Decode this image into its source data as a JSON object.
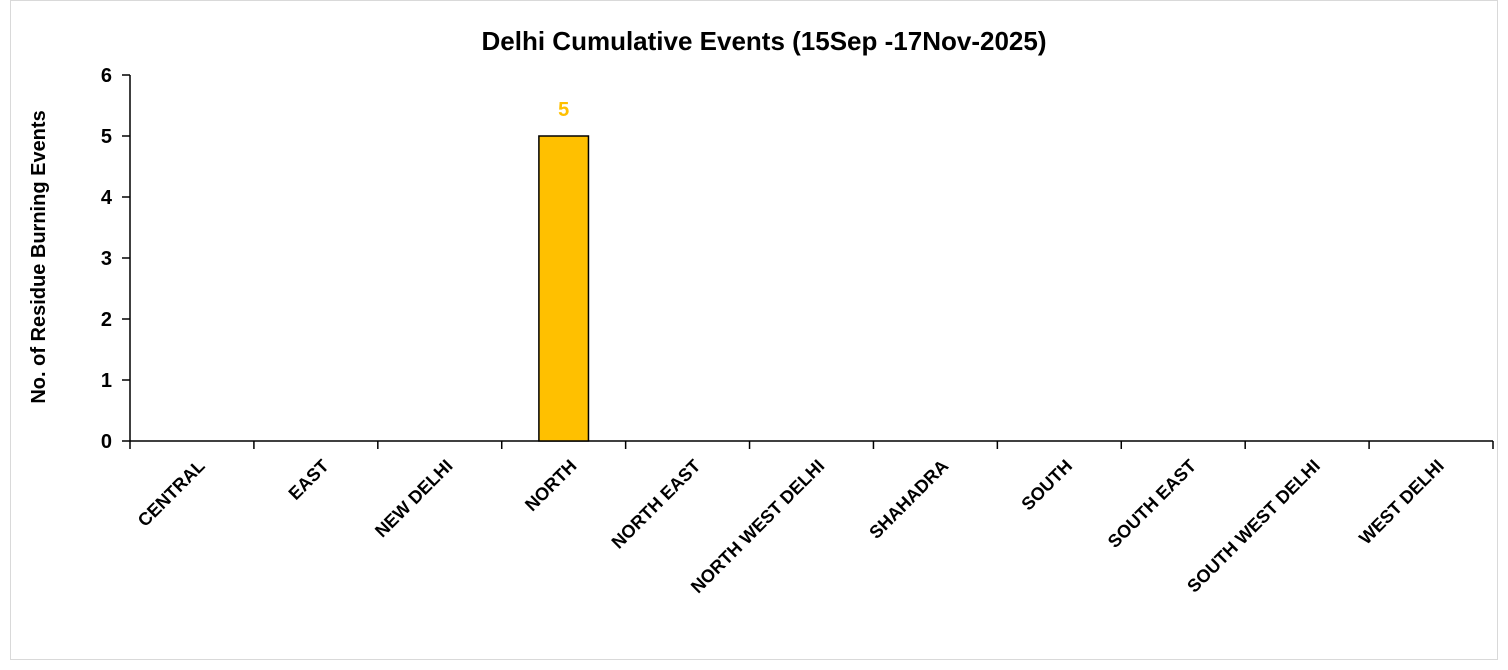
{
  "chart_data": {
    "type": "bar",
    "title": "Delhi Cumulative Events (15Sep -17Nov-2025)",
    "xlabel": "",
    "ylabel": "No. of Residue Burning Events",
    "ylim": [
      0,
      6
    ],
    "yticks": [
      0,
      1,
      2,
      3,
      4,
      5,
      6
    ],
    "grid": false,
    "legend": "none",
    "categories": [
      "CENTRAL",
      "EAST",
      "NEW DELHI",
      "NORTH",
      "NORTH EAST",
      "NORTH WEST DELHI",
      "SHAHADRA",
      "SOUTH",
      "SOUTH EAST",
      "SOUTH WEST DELHI",
      "WEST DELHI"
    ],
    "values": [
      0,
      0,
      0,
      5,
      0,
      0,
      0,
      0,
      0,
      0,
      0
    ],
    "data_labels": [
      "",
      "",
      "",
      "5",
      "",
      "",
      "",
      "",
      "",
      "",
      ""
    ],
    "colors": {
      "bar": "#ffc000",
      "bar_border": "#000000",
      "data_label": "#ffc000",
      "axis": "#000000"
    }
  }
}
